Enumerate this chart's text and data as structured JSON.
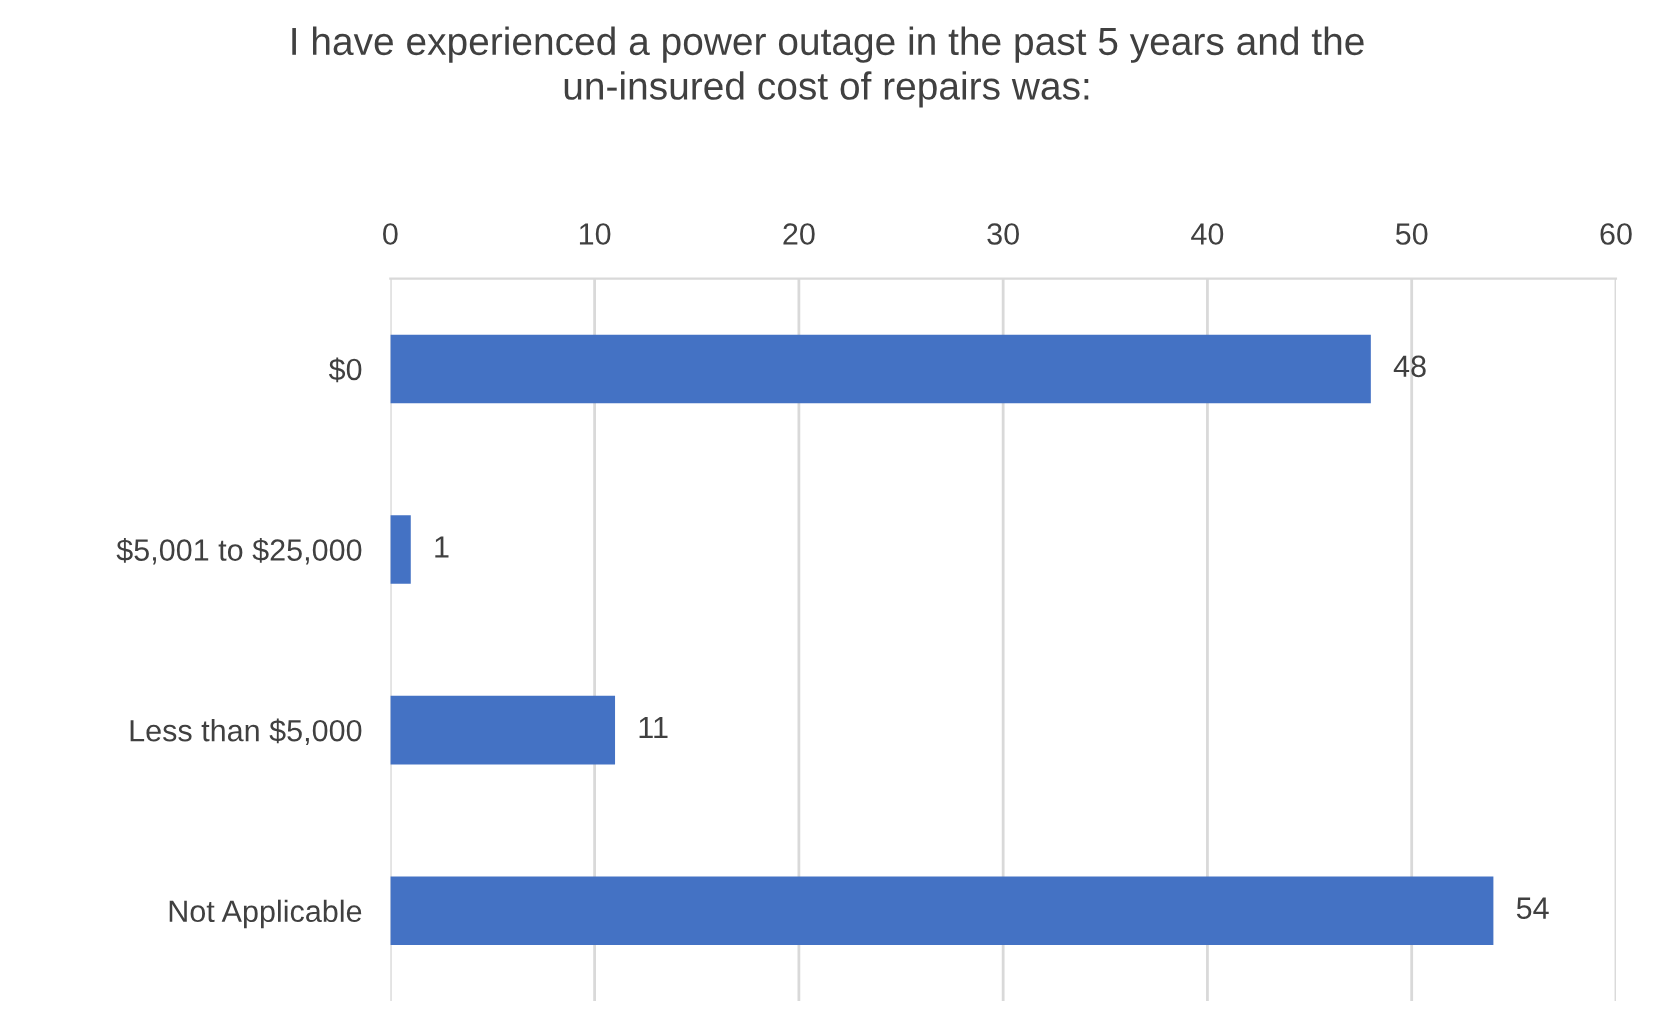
{
  "chart_data": {
    "type": "bar",
    "orientation": "horizontal",
    "title": "I have experienced a power outage in the past 5 years and the\nun-insured cost of repairs was:",
    "categories": [
      "$0",
      "$5,001 to $25,000",
      "Less than $5,000",
      "Not Applicable"
    ],
    "values": [
      48,
      1,
      11,
      54
    ],
    "color": "#4472c4",
    "xlim": [
      0,
      60
    ],
    "xticks": [
      0,
      10,
      20,
      30,
      40,
      50,
      60
    ],
    "grid": "x",
    "data_labels": true
  }
}
